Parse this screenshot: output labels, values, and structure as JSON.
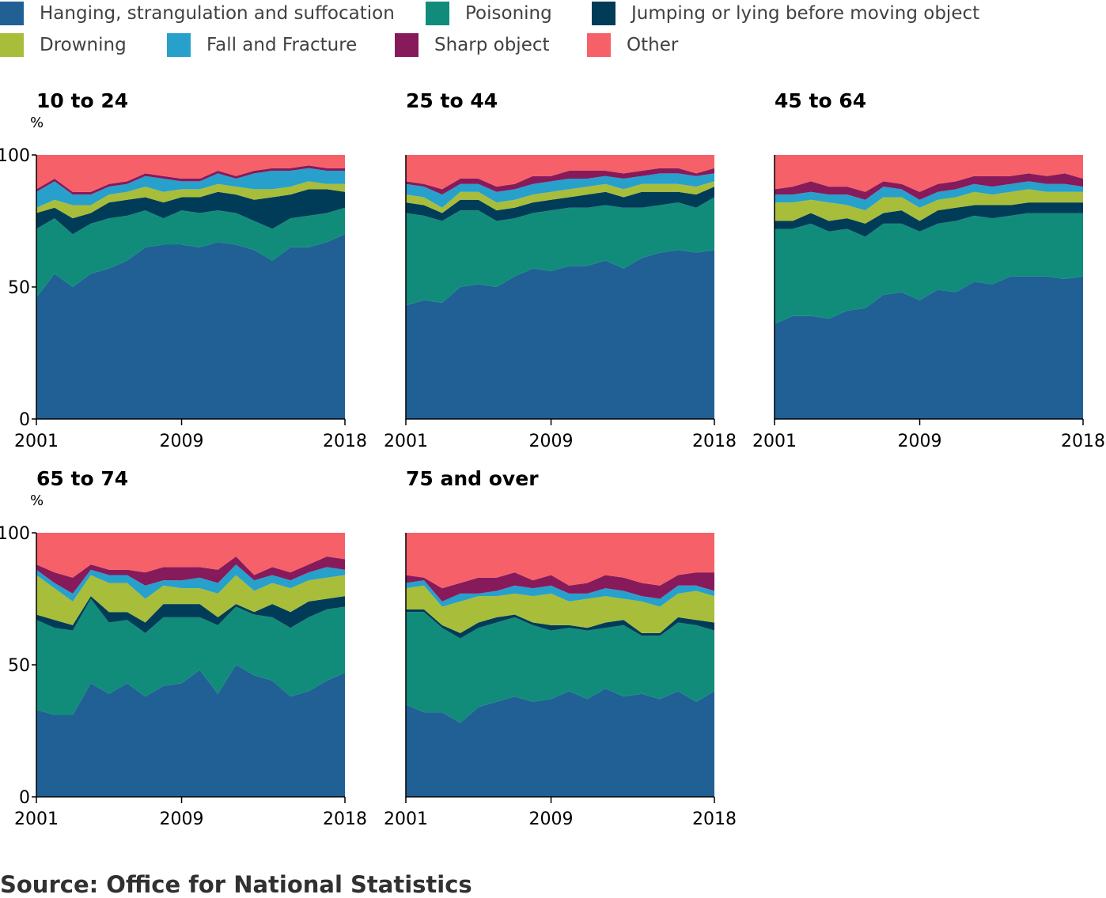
{
  "legend": [
    {
      "label": "Hanging, strangulation and suffocation",
      "color": "#206095"
    },
    {
      "label": "Poisoning",
      "color": "#118c7b"
    },
    {
      "label": "Jumping or lying before moving object",
      "color": "#003c57"
    },
    {
      "label": "Drowning",
      "color": "#a8bd3a"
    },
    {
      "label": "Fall and Fracture",
      "color": "#27a0cc"
    },
    {
      "label": "Sharp object",
      "color": "#871a5b"
    },
    {
      "label": "Other",
      "color": "#f66068"
    }
  ],
  "source": "Source: Office for National Statistics",
  "chart_data": [
    {
      "type": "area",
      "stacked": true,
      "title": "10 to 24",
      "ylabel": "%",
      "x": [
        2001,
        2002,
        2003,
        2004,
        2005,
        2006,
        2007,
        2008,
        2009,
        2010,
        2011,
        2012,
        2013,
        2014,
        2015,
        2016,
        2017,
        2018
      ],
      "xticks": [
        "2001",
        "2009",
        "2018"
      ],
      "ylim": [
        0,
        100
      ],
      "yticks": [
        "0",
        "50",
        "100"
      ],
      "series": [
        {
          "name": "Hanging, strangulation and suffocation",
          "values": [
            46,
            55,
            50,
            55,
            57,
            60,
            65,
            66,
            66,
            65,
            67,
            66,
            64,
            60,
            65,
            65,
            67,
            70
          ]
        },
        {
          "name": "Poisoning",
          "values": [
            26,
            21,
            20,
            19,
            19,
            17,
            14,
            10,
            13,
            13,
            12,
            12,
            11,
            12,
            11,
            12,
            11,
            10
          ]
        },
        {
          "name": "Jumping or lying before moving object",
          "values": [
            6,
            4,
            6,
            4,
            6,
            6,
            5,
            6,
            5,
            6,
            7,
            7,
            8,
            12,
            9,
            10,
            9,
            6
          ]
        },
        {
          "name": "Drowning",
          "values": [
            2,
            3,
            5,
            3,
            3,
            3,
            4,
            4,
            3,
            3,
            3,
            3,
            4,
            3,
            3,
            3,
            2,
            3
          ]
        },
        {
          "name": "Fall and Fracture",
          "values": [
            6,
            7,
            4,
            4,
            3,
            3,
            4,
            5,
            3,
            3,
            4,
            3,
            6,
            7,
            6,
            5,
            5,
            5
          ]
        },
        {
          "name": "Sharp object",
          "values": [
            1,
            1,
            1,
            1,
            1,
            1,
            1,
            1,
            1,
            1,
            1,
            1,
            1,
            1,
            1,
            1,
            1,
            1
          ]
        },
        {
          "name": "Other",
          "values": [
            13,
            9,
            14,
            14,
            11,
            10,
            7,
            8,
            9,
            9,
            6,
            8,
            6,
            5,
            5,
            4,
            5,
            5
          ]
        }
      ]
    },
    {
      "type": "area",
      "stacked": true,
      "title": "25 to 44",
      "ylabel": "",
      "x": [
        2001,
        2002,
        2003,
        2004,
        2005,
        2006,
        2007,
        2008,
        2009,
        2010,
        2011,
        2012,
        2013,
        2014,
        2015,
        2016,
        2017,
        2018
      ],
      "xticks": [
        "2001",
        "2009",
        "2018"
      ],
      "ylim": [
        0,
        100
      ],
      "yticks": [],
      "series": [
        {
          "name": "Hanging, strangulation and suffocation",
          "values": [
            43,
            45,
            44,
            50,
            51,
            50,
            54,
            57,
            56,
            58,
            58,
            60,
            57,
            61,
            63,
            64,
            63,
            64
          ]
        },
        {
          "name": "Poisoning",
          "values": [
            35,
            32,
            31,
            29,
            28,
            25,
            22,
            21,
            23,
            22,
            22,
            21,
            23,
            19,
            18,
            18,
            17,
            20
          ]
        },
        {
          "name": "Jumping or lying before moving object",
          "values": [
            4,
            4,
            3,
            4,
            4,
            4,
            4,
            4,
            4,
            4,
            5,
            5,
            4,
            6,
            5,
            4,
            5,
            4
          ]
        },
        {
          "name": "Drowning",
          "values": [
            3,
            3,
            2,
            3,
            3,
            3,
            3,
            3,
            3,
            3,
            3,
            3,
            3,
            3,
            3,
            3,
            3,
            2
          ]
        },
        {
          "name": "Fall and Fracture",
          "values": [
            4,
            4,
            5,
            3,
            3,
            4,
            4,
            4,
            4,
            4,
            3,
            3,
            4,
            3,
            4,
            4,
            4,
            3
          ]
        },
        {
          "name": "Sharp object",
          "values": [
            1,
            1,
            2,
            2,
            2,
            2,
            2,
            3,
            2,
            3,
            3,
            2,
            2,
            2,
            2,
            2,
            1,
            2
          ]
        },
        {
          "name": "Other",
          "values": [
            10,
            11,
            13,
            9,
            9,
            12,
            11,
            8,
            8,
            6,
            6,
            6,
            7,
            6,
            5,
            5,
            7,
            5
          ]
        }
      ]
    },
    {
      "type": "area",
      "stacked": true,
      "title": "45 to 64",
      "ylabel": "",
      "x": [
        2001,
        2002,
        2003,
        2004,
        2005,
        2006,
        2007,
        2008,
        2009,
        2010,
        2011,
        2012,
        2013,
        2014,
        2015,
        2016,
        2017,
        2018
      ],
      "xticks": [
        "2001",
        "2009",
        "2018"
      ],
      "ylim": [
        0,
        100
      ],
      "yticks": [],
      "series": [
        {
          "name": "Hanging, strangulation and suffocation",
          "values": [
            36,
            39,
            39,
            38,
            41,
            42,
            47,
            48,
            45,
            49,
            48,
            52,
            51,
            54,
            54,
            54,
            53,
            54
          ]
        },
        {
          "name": "Poisoning",
          "values": [
            36,
            33,
            35,
            33,
            31,
            27,
            27,
            26,
            26,
            25,
            27,
            25,
            25,
            23,
            24,
            24,
            25,
            24
          ]
        },
        {
          "name": "Jumping or lying before moving object",
          "values": [
            3,
            3,
            4,
            4,
            4,
            5,
            4,
            5,
            4,
            5,
            5,
            4,
            5,
            4,
            4,
            4,
            4,
            4
          ]
        },
        {
          "name": "Drowning",
          "values": [
            7,
            7,
            5,
            7,
            5,
            5,
            6,
            5,
            5,
            4,
            4,
            5,
            4,
            5,
            5,
            4,
            4,
            4
          ]
        },
        {
          "name": "Fall and Fracture",
          "values": [
            3,
            3,
            3,
            3,
            4,
            4,
            4,
            3,
            3,
            3,
            3,
            3,
            3,
            3,
            3,
            3,
            3,
            2
          ]
        },
        {
          "name": "Sharp object",
          "values": [
            2,
            3,
            4,
            3,
            3,
            3,
            2,
            2,
            3,
            3,
            3,
            3,
            4,
            3,
            3,
            3,
            4,
            3
          ]
        },
        {
          "name": "Other",
          "values": [
            13,
            12,
            10,
            12,
            12,
            14,
            10,
            11,
            14,
            11,
            10,
            8,
            8,
            8,
            7,
            8,
            7,
            9
          ]
        }
      ]
    },
    {
      "type": "area",
      "stacked": true,
      "title": "65 to 74",
      "ylabel": "%",
      "x": [
        2001,
        2002,
        2003,
        2004,
        2005,
        2006,
        2007,
        2008,
        2009,
        2010,
        2011,
        2012,
        2013,
        2014,
        2015,
        2016,
        2017,
        2018
      ],
      "xticks": [
        "2001",
        "2009",
        "2018"
      ],
      "ylim": [
        0,
        100
      ],
      "yticks": [
        "0",
        "50",
        "100"
      ],
      "series": [
        {
          "name": "Hanging, strangulation and suffocation",
          "values": [
            33,
            31,
            31,
            43,
            39,
            43,
            38,
            42,
            43,
            48,
            39,
            50,
            46,
            44,
            38,
            40,
            44,
            47
          ]
        },
        {
          "name": "Poisoning",
          "values": [
            34,
            33,
            32,
            32,
            27,
            24,
            24,
            26,
            25,
            20,
            26,
            22,
            23,
            24,
            26,
            28,
            27,
            25
          ]
        },
        {
          "name": "Jumping or lying before moving object",
          "values": [
            2,
            3,
            2,
            1,
            4,
            3,
            4,
            5,
            5,
            5,
            3,
            1,
            1,
            5,
            6,
            6,
            4,
            4
          ]
        },
        {
          "name": "Drowning",
          "values": [
            15,
            12,
            9,
            8,
            11,
            11,
            9,
            7,
            6,
            6,
            9,
            11,
            8,
            8,
            9,
            8,
            8,
            8
          ]
        },
        {
          "name": "Fall and Fracture",
          "values": [
            2,
            2,
            3,
            2,
            3,
            3,
            5,
            2,
            3,
            4,
            4,
            4,
            4,
            3,
            3,
            3,
            4,
            2
          ]
        },
        {
          "name": "Sharp object",
          "values": [
            2,
            4,
            6,
            2,
            2,
            2,
            5,
            5,
            5,
            4,
            5,
            3,
            2,
            3,
            3,
            3,
            4,
            4
          ]
        },
        {
          "name": "Other",
          "values": [
            12,
            15,
            17,
            12,
            14,
            14,
            15,
            13,
            13,
            13,
            14,
            9,
            16,
            13,
            15,
            12,
            9,
            10
          ]
        }
      ]
    },
    {
      "type": "area",
      "stacked": true,
      "title": "75 and over",
      "ylabel": "",
      "x": [
        2001,
        2002,
        2003,
        2004,
        2005,
        2006,
        2007,
        2008,
        2009,
        2010,
        2011,
        2012,
        2013,
        2014,
        2015,
        2016,
        2017,
        2018
      ],
      "xticks": [
        "2001",
        "2009",
        "2018"
      ],
      "ylim": [
        0,
        100
      ],
      "yticks": [],
      "series": [
        {
          "name": "Hanging, strangulation and suffocation",
          "values": [
            35,
            32,
            32,
            28,
            34,
            36,
            38,
            36,
            37,
            40,
            37,
            41,
            38,
            39,
            37,
            40,
            36,
            40
          ]
        },
        {
          "name": "Poisoning",
          "values": [
            35,
            38,
            32,
            32,
            30,
            30,
            30,
            29,
            26,
            24,
            26,
            23,
            27,
            22,
            24,
            26,
            29,
            23
          ]
        },
        {
          "name": "Jumping or lying before moving object",
          "values": [
            1,
            1,
            1,
            2,
            2,
            2,
            1,
            1,
            2,
            1,
            1,
            2,
            2,
            1,
            1,
            2,
            2,
            3
          ]
        },
        {
          "name": "Drowning",
          "values": [
            8,
            9,
            7,
            12,
            10,
            8,
            8,
            10,
            12,
            9,
            11,
            10,
            8,
            12,
            10,
            9,
            11,
            10
          ]
        },
        {
          "name": "Fall and Fracture",
          "values": [
            2,
            2,
            2,
            3,
            1,
            2,
            3,
            3,
            3,
            3,
            2,
            3,
            3,
            2,
            3,
            3,
            2,
            2
          ]
        },
        {
          "name": "Sharp object",
          "values": [
            3,
            1,
            5,
            4,
            6,
            5,
            5,
            3,
            4,
            3,
            4,
            5,
            5,
            5,
            5,
            4,
            5,
            7
          ]
        },
        {
          "name": "Other",
          "values": [
            16,
            17,
            21,
            19,
            17,
            17,
            15,
            18,
            16,
            20,
            19,
            16,
            17,
            19,
            20,
            16,
            15,
            15
          ]
        }
      ]
    }
  ]
}
